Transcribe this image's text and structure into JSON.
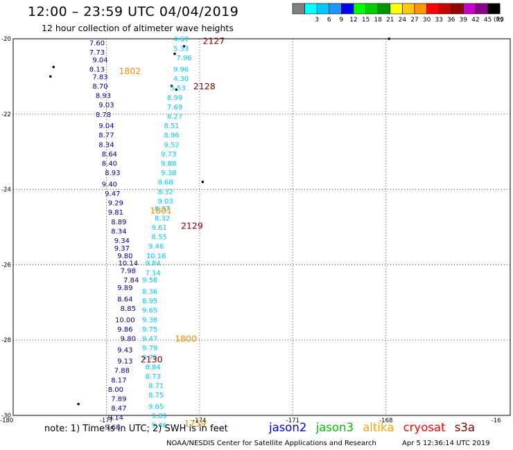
{
  "title": "12:00 – 23:59 UTC 04/04/2019",
  "subtitle": "12 hour collection of altimeter wave heights",
  "color_scale": {
    "unit": "(ft)",
    "bins": [
      {
        "label": "",
        "color": "#7f7f7f"
      },
      {
        "label": "3",
        "color": "#00ffff"
      },
      {
        "label": "6",
        "color": "#00c8ff"
      },
      {
        "label": "9",
        "color": "#1e96ff"
      },
      {
        "label": "12",
        "color": "#0000ff"
      },
      {
        "label": "15",
        "color": "#00ff00"
      },
      {
        "label": "18",
        "color": "#00cd00"
      },
      {
        "label": "21",
        "color": "#009600"
      },
      {
        "label": "24",
        "color": "#ffff00"
      },
      {
        "label": "27",
        "color": "#ffc800"
      },
      {
        "label": "30",
        "color": "#ff9600"
      },
      {
        "label": "33",
        "color": "#ff0000"
      },
      {
        "label": "36",
        "color": "#c80000"
      },
      {
        "label": "39",
        "color": "#960000"
      },
      {
        "label": "42",
        "color": "#c800c8"
      },
      {
        "label": "45",
        "color": "#8c008c"
      },
      {
        "label": "70",
        "color": "#000000"
      }
    ]
  },
  "axes": {
    "y_labels": [
      "-20",
      "-22",
      "-24",
      "-26",
      "-28",
      "-30"
    ],
    "x_labels": [
      "-180",
      "-177",
      "-174",
      "-171",
      "-168",
      "-16"
    ]
  },
  "tracks": [
    {
      "satellite": "jason2",
      "color": "#00008b",
      "points": [
        [
          "7.60",
          -20.1,
          -177.3
        ],
        [
          "7.73",
          -20.35,
          -177.3
        ],
        [
          "9.04",
          -20.55,
          -177.2
        ],
        [
          "8.13",
          -20.8,
          -177.3
        ],
        [
          "7.83",
          -21.0,
          -177.2
        ],
        [
          "8.70",
          -21.25,
          -177.2
        ],
        [
          "8.93",
          -21.5,
          -177.1
        ],
        [
          "9.03",
          -21.75,
          -177.0
        ],
        [
          "8.78",
          -22.0,
          -177.1
        ],
        [
          "9.04",
          -22.3,
          -177.0
        ],
        [
          "8.77",
          -22.55,
          -177.0
        ],
        [
          "8.34",
          -22.8,
          -177.0
        ],
        [
          "8.64",
          -23.05,
          -176.9
        ],
        [
          "8.40",
          -23.3,
          -176.9
        ],
        [
          "8.93",
          -23.55,
          -176.8
        ],
        [
          "9.40",
          -23.85,
          -176.9
        ],
        [
          "9.47",
          -24.1,
          -176.8
        ],
        [
          "9.29",
          -24.35,
          -176.7
        ],
        [
          "9.81",
          -24.6,
          -176.7
        ],
        [
          "8.89",
          -24.85,
          -176.6
        ],
        [
          "8.34",
          -25.1,
          -176.6
        ],
        [
          "9.34",
          -25.35,
          -176.5
        ],
        [
          "9.37",
          -25.55,
          -176.5
        ],
        [
          "9.80",
          -25.75,
          -176.4
        ],
        [
          "10.14",
          -25.95,
          -176.3
        ],
        [
          "7.98",
          -26.15,
          -176.3
        ],
        [
          "7.84",
          -26.4,
          -176.2
        ],
        [
          "9.89",
          -26.6,
          -176.4
        ],
        [
          "8.64",
          -26.9,
          -176.4
        ],
        [
          "8.85",
          -27.15,
          -176.3
        ],
        [
          "10.00",
          -27.45,
          -176.4
        ],
        [
          "9.86",
          -27.7,
          -176.4
        ],
        [
          "9.80",
          -27.95,
          -176.3
        ],
        [
          "9.43",
          -28.25,
          -176.4
        ],
        [
          "9.13",
          -28.55,
          -176.4
        ],
        [
          "7.88",
          -28.8,
          -176.5
        ],
        [
          "8.17",
          -29.05,
          -176.6
        ],
        [
          "8.00",
          -29.3,
          -176.7
        ],
        [
          "7.89",
          -29.55,
          -176.6
        ],
        [
          "8.47",
          -29.8,
          -176.6
        ],
        [
          "9.14",
          -30.05,
          -176.7
        ],
        [
          "9.68",
          -30.3,
          -176.8
        ]
      ]
    },
    {
      "satellite": "jason3",
      "color": "#00c8ff",
      "points": [
        [
          "4.67",
          -20.0,
          -174.6
        ],
        [
          "5.33",
          -20.25,
          -174.6
        ],
        [
          "7.96",
          -20.5,
          -174.5
        ],
        [
          "9.96",
          -20.8,
          -174.6
        ],
        [
          "4.30",
          -21.05,
          -174.6
        ],
        [
          "5.53",
          -21.3,
          -174.7
        ],
        [
          "8.99",
          -21.55,
          -174.8
        ],
        [
          "7.69",
          -21.8,
          -174.8
        ],
        [
          "8.27",
          -22.05,
          -174.8
        ],
        [
          "8.51",
          -22.3,
          -174.9
        ],
        [
          "8.96",
          -22.55,
          -174.9
        ],
        [
          "9.52",
          -22.8,
          -174.9
        ],
        [
          "9.73",
          -23.05,
          -175.0
        ],
        [
          "9.88",
          -23.3,
          -175.0
        ],
        [
          "9.38",
          -23.55,
          -175.0
        ],
        [
          "8.68",
          -23.8,
          -175.1
        ],
        [
          "8.32",
          -24.05,
          -175.1
        ],
        [
          "9.03",
          -24.3,
          -175.1
        ],
        [
          "8.37",
          -24.5,
          -175.2
        ],
        [
          "8.32",
          -24.75,
          -175.2
        ],
        [
          "9.61",
          -25.0,
          -175.3
        ],
        [
          "8.55",
          -25.25,
          -175.3
        ],
        [
          "9.46",
          -25.5,
          -175.4
        ],
        [
          "10.16",
          -25.75,
          -175.4
        ],
        [
          "9.84",
          -25.95,
          -175.5
        ],
        [
          "7.14",
          -26.2,
          -175.5
        ],
        [
          "9.58",
          -26.4,
          -175.6
        ],
        [
          "8.36",
          -26.7,
          -175.6
        ],
        [
          "8.95",
          -26.95,
          -175.6
        ],
        [
          "9.65",
          -27.2,
          -175.6
        ],
        [
          "9.38",
          -27.45,
          -175.6
        ],
        [
          "9.75",
          -27.7,
          -175.6
        ],
        [
          "9.47",
          -27.95,
          -175.6
        ],
        [
          "9.79",
          -28.2,
          -175.6
        ],
        [
          "8.75",
          -28.45,
          -175.6
        ],
        [
          "8.84",
          -28.7,
          -175.5
        ],
        [
          "8.73",
          -28.95,
          -175.5
        ],
        [
          "8.71",
          -29.2,
          -175.4
        ],
        [
          "8.75",
          -29.45,
          -175.4
        ],
        [
          "9.65",
          -29.75,
          -175.4
        ],
        [
          "9.89",
          -30.0,
          -175.3
        ],
        [
          "9.46",
          -30.25,
          -175.3
        ]
      ]
    }
  ],
  "time_labels": [
    {
      "text": "2127",
      "lat": -20.05,
      "lon": -173.9,
      "color": "#800000"
    },
    {
      "text": "1802",
      "lat": -20.85,
      "lon": -176.6,
      "color": "#ff8c00"
    },
    {
      "text": "2128",
      "lat": -21.25,
      "lon": -174.2,
      "color": "#800000"
    },
    {
      "text": "1801",
      "lat": -24.55,
      "lon": -175.6,
      "color": "#ff8c00"
    },
    {
      "text": "2129",
      "lat": -24.95,
      "lon": -174.6,
      "color": "#800000"
    },
    {
      "text": "1800",
      "lat": -27.95,
      "lon": -174.8,
      "color": "#ff8c00"
    },
    {
      "text": "2130",
      "lat": -28.5,
      "lon": -175.9,
      "color": "#800000"
    },
    {
      "text": "1759",
      "lat": -30.2,
      "lon": -174.5,
      "color": "#ff8c00"
    }
  ],
  "footer": {
    "note": "note: 1) Time is in UTC; 2) SWH is in feet",
    "credit": "NOAA/NESDIS Center for Satellite Applications and Research",
    "date": "Apr  5 12:36:14 UTC 2019",
    "satellites": [
      {
        "name": "jason2",
        "color": "#0000ff"
      },
      {
        "name": "jason3",
        "color": "#00c000"
      },
      {
        "name": "altika",
        "color": "#ffa500"
      },
      {
        "name": "cryosat",
        "color": "#ff0000"
      },
      {
        "name": "s3a",
        "color": "#800000"
      }
    ]
  }
}
